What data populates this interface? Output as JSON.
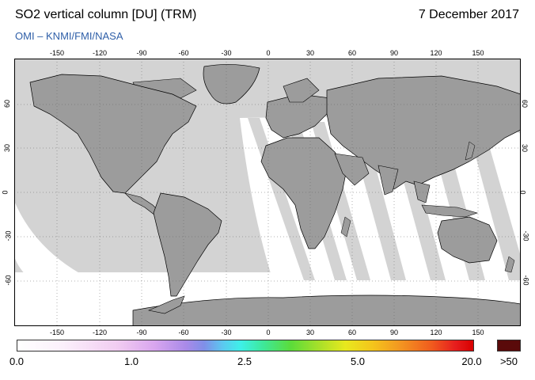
{
  "header": {
    "title": "SO2 vertical column [DU] (TRM)",
    "date": "7 December 2017",
    "credit": "OMI  –  KNMI/FMI/NASA"
  },
  "axes": {
    "top_ticks": [
      "-150",
      "-120",
      "-90",
      "-60",
      "-30",
      "0",
      "30",
      "60",
      "90",
      "120",
      "150"
    ],
    "bottom_ticks": [
      "-150",
      "-120",
      "-90",
      "-60",
      "-30",
      "0",
      "30",
      "60",
      "90",
      "120",
      "150"
    ],
    "left_ticks": [
      "60",
      "30",
      "0",
      "-30",
      "-60"
    ],
    "right_ticks": [
      "60",
      "30",
      "0",
      "-30",
      "-60"
    ]
  },
  "colorbar": {
    "labels": [
      "0.0",
      "1.0",
      "2.5",
      "5.0",
      "20.0",
      ">50"
    ],
    "max_color": "#5a0a0a"
  },
  "map": {
    "ocean_color": "#d3d3d3",
    "land_color": "#9c9c9c",
    "swath_color": "#ffffff",
    "nodata_color": "#d3d3d3"
  }
}
